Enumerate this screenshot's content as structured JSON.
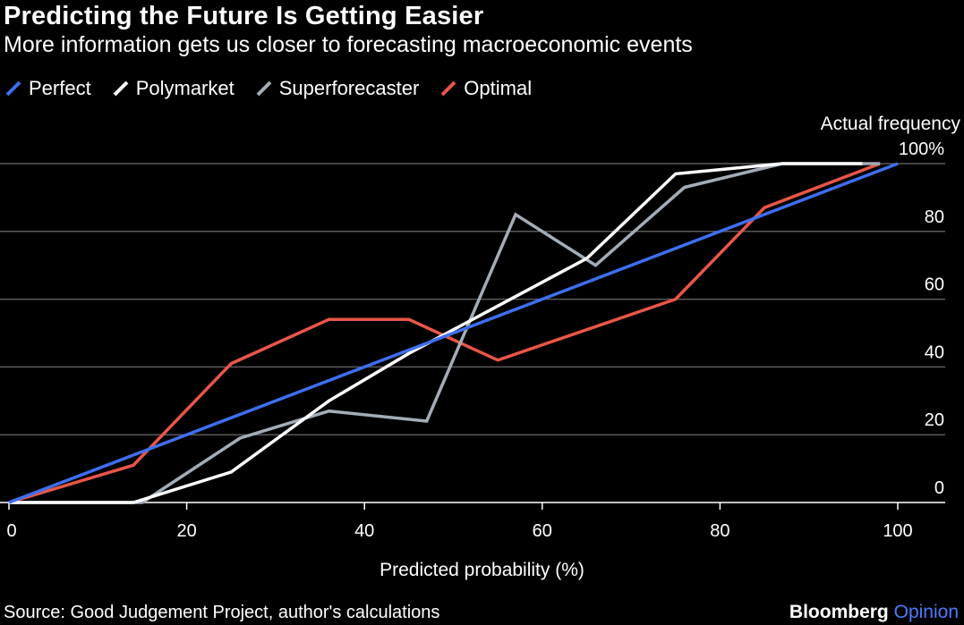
{
  "title": "Predicting the Future Is Getting Easier",
  "subtitle": "More information gets us closer to forecasting macroeconomic events",
  "legend": [
    {
      "name": "Perfect",
      "color": "#3f6ef0"
    },
    {
      "name": "Polymarket",
      "color": "#ffffff"
    },
    {
      "name": "Superforecaster",
      "color": "#a3adb8"
    },
    {
      "name": "Optimal",
      "color": "#ea5648"
    }
  ],
  "source": "Source: Good Judgement Project, author's calculations",
  "brand": {
    "primary": "Bloomberg",
    "secondary": "Opinion"
  },
  "chart_data": {
    "type": "line",
    "title": "Predicting the Future Is Getting Easier",
    "xlabel": "Predicted probability (%)",
    "ylabel": "Actual frequency",
    "xlim": [
      0,
      100
    ],
    "ylim": [
      0,
      100
    ],
    "x_ticks": [
      0,
      20,
      40,
      60,
      80,
      100
    ],
    "x_tick_labels": [
      "0",
      "20",
      "40",
      "60",
      "80",
      "100"
    ],
    "y_ticks": [
      0,
      20,
      40,
      60,
      80,
      100
    ],
    "y_tick_labels": [
      "0",
      "20",
      "40",
      "60",
      "80",
      "100%"
    ],
    "grid": true,
    "series": [
      {
        "name": "Perfect",
        "color": "#3f6ef0",
        "x": [
          0,
          100
        ],
        "y": [
          0,
          100
        ]
      },
      {
        "name": "Polymarket",
        "color": "#ffffff",
        "x": [
          0,
          14,
          25,
          36,
          45,
          55,
          65,
          75,
          87,
          96
        ],
        "y": [
          0,
          0,
          9,
          30,
          44,
          58,
          72,
          97,
          100,
          100
        ]
      },
      {
        "name": "Superforecaster",
        "color": "#a3adb8",
        "x": [
          0,
          15,
          26,
          36,
          47,
          57,
          66,
          76,
          87,
          98
        ],
        "y": [
          0,
          0,
          19,
          27,
          24,
          85,
          70,
          93,
          100,
          100
        ]
      },
      {
        "name": "Optimal",
        "color": "#ea5648",
        "x": [
          0,
          14,
          25,
          36,
          45,
          55,
          75,
          85,
          98
        ],
        "y": [
          0,
          11,
          41,
          54,
          54,
          42,
          60,
          87,
          100
        ]
      }
    ]
  }
}
